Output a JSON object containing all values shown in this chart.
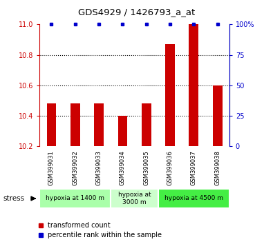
{
  "title": "GDS4929 / 1426793_a_at",
  "samples": [
    "GSM399031",
    "GSM399032",
    "GSM399033",
    "GSM399034",
    "GSM399035",
    "GSM399036",
    "GSM399037",
    "GSM399038"
  ],
  "red_values": [
    10.48,
    10.48,
    10.48,
    10.4,
    10.48,
    10.87,
    11.0,
    10.6
  ],
  "blue_values": [
    100,
    100,
    100,
    100,
    100,
    100,
    100,
    100
  ],
  "ylim_left": [
    10.2,
    11.0
  ],
  "ylim_right": [
    0,
    100
  ],
  "yticks_left": [
    10.2,
    10.4,
    10.6,
    10.8,
    11.0
  ],
  "yticks_right": [
    0,
    25,
    50,
    75,
    100
  ],
  "ytick_labels_right": [
    "0",
    "25",
    "50",
    "75",
    "100%"
  ],
  "red_color": "#cc0000",
  "blue_color": "#0000cc",
  "bar_width": 0.4,
  "groups": [
    {
      "label": "hypoxia at 1400 m",
      "start": 0,
      "end": 3,
      "color": "#aaffaa"
    },
    {
      "label": "hypoxia at\n3000 m",
      "start": 3,
      "end": 5,
      "color": "#ccffcc"
    },
    {
      "label": "hypoxia at 4500 m",
      "start": 5,
      "end": 8,
      "color": "#44ee44"
    }
  ],
  "stress_label": "stress",
  "legend_red": "transformed count",
  "legend_blue": "percentile rank within the sample",
  "background_color": "#ffffff",
  "sample_box_color": "#c8c8c8",
  "base_value": 10.2
}
